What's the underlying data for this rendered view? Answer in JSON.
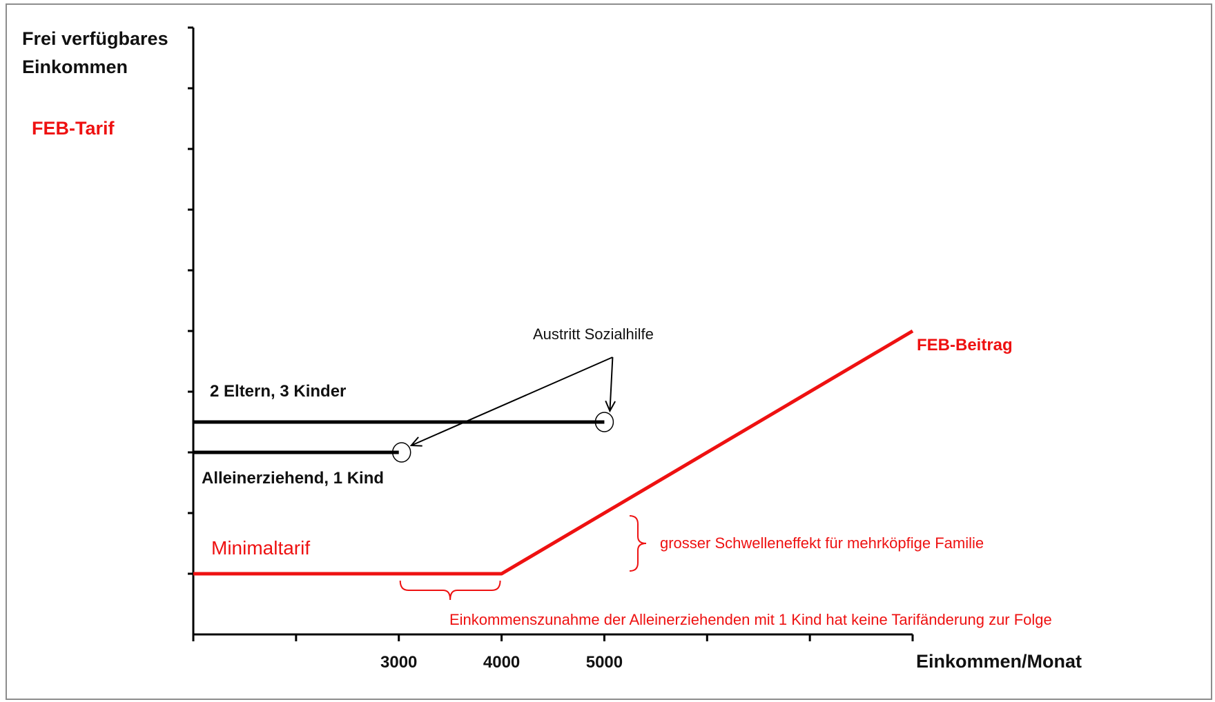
{
  "chart_data": {
    "type": "line",
    "title": "",
    "xlabel": "Einkommen/Monat",
    "ylabel_lines": [
      "Frei verfügbares",
      "Einkommen"
    ],
    "tariff_label": "FEB-Tarif",
    "x_tick_labels": [
      "3000",
      "4000",
      "5000"
    ],
    "x_tick_label_values": [
      3000,
      4000,
      5000
    ],
    "xlim": [
      1000,
      8000
    ],
    "x_ticks": [
      1000,
      2000,
      3000,
      4000,
      5000,
      6000,
      7000,
      8000
    ],
    "ylim": [
      0,
      10
    ],
    "y_ticks": [
      1,
      2,
      3,
      4,
      5,
      6,
      7,
      8,
      9,
      10
    ],
    "grid": false,
    "series": [
      {
        "name": "2 Eltern, 3 Kinder",
        "color": "#000000",
        "x": [
          1000,
          5000
        ],
        "y": [
          3.5,
          3.5
        ]
      },
      {
        "name": "Alleinerziehend, 1 Kind",
        "color": "#000000",
        "x": [
          1000,
          3000
        ],
        "y": [
          3,
          3
        ]
      },
      {
        "name": "FEB-Beitrag",
        "color": "#ee1111",
        "x": [
          1000,
          4000,
          8000
        ],
        "y": [
          1,
          1,
          5
        ]
      }
    ],
    "annotations": {
      "minimaltarif": "Minimaltarif",
      "austritt": "Austritt Sozialhilfe",
      "schwelle": "grosser Schwelleneffekt für mehrköpfige Familie",
      "einkommen": "Einkommenszunahme der Alleinerziehenden mit 1 Kind hat keine Tarifänderung zur Folge"
    }
  }
}
